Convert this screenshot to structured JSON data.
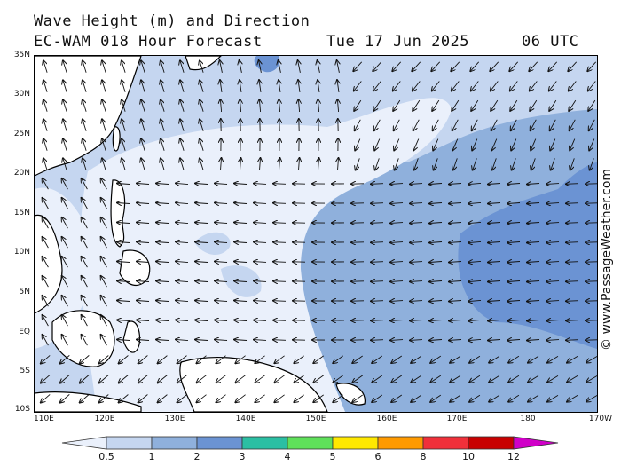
{
  "header": {
    "title_line1": "Wave Height (m) and Direction",
    "title_line2": "EC-WAM 018 Hour Forecast",
    "date": "Tue 17 Jun 2025",
    "time": "06 UTC"
  },
  "map": {
    "lon_range": [
      110,
      190
    ],
    "lat_range": [
      -10,
      35
    ],
    "lat_labels": [
      "35N",
      "30N",
      "25N",
      "20N",
      "15N",
      "10N",
      "5N",
      "EQ",
      "5S",
      "10S"
    ],
    "lon_labels": [
      "110E",
      "120E",
      "130E",
      "140E",
      "150E",
      "160E",
      "170E",
      "180",
      "170W"
    ],
    "credit": "© www.PassageWeather.com"
  },
  "legend": {
    "units": "m",
    "ticks": [
      "0.5",
      "1",
      "2",
      "3",
      "4",
      "5",
      "6",
      "8",
      "10",
      "12"
    ],
    "colors": [
      "#eaf0fb",
      "#c5d6f0",
      "#8fb0dc",
      "#6b93d3",
      "#2bbfa3",
      "#5fe05a",
      "#ffe800",
      "#ff9a00",
      "#f0303a",
      "#c80000",
      "#d000c8"
    ]
  },
  "colors": {
    "land": "#ffffff",
    "coast": "#000000",
    "arrow": "#111111"
  }
}
